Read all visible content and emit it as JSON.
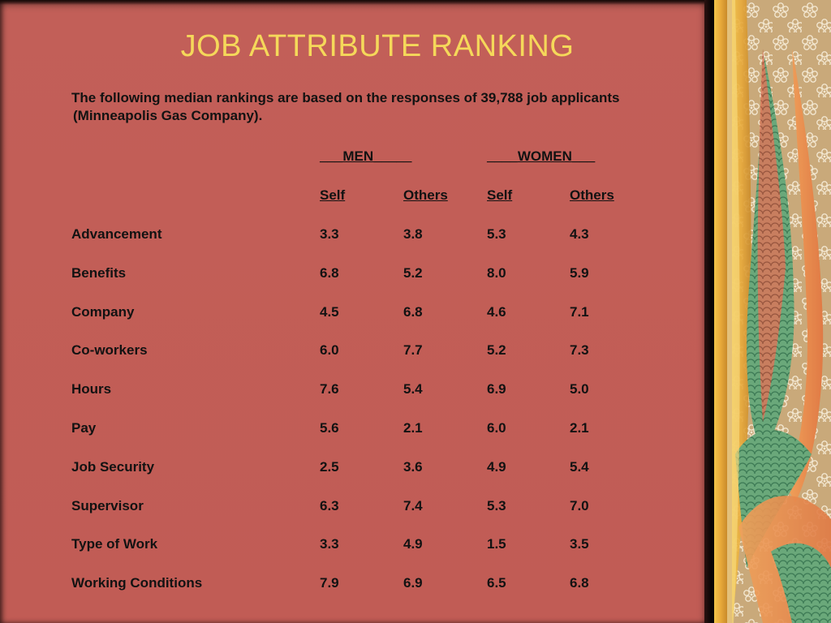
{
  "slide": {
    "title": "JOB ATTRIBUTE RANKING",
    "intro_line1": "The following median rankings are based on the responses of 39,788 job applicants",
    "intro_line2": "(Minneapolis Gas Company).",
    "group_headers": {
      "men": "MEN",
      "women": "WOMEN"
    },
    "column_headers": {
      "men_self": "Self",
      "men_others": "Others",
      "women_self": "Self",
      "women_others": "Others"
    },
    "rows": [
      {
        "label": "Advancement",
        "men_self": "3.3",
        "men_others": "3.8",
        "women_self": "5.3",
        "women_others": "4.3"
      },
      {
        "label": "Benefits",
        "men_self": "6.8",
        "men_others": "5.2",
        "women_self": "8.0",
        "women_others": "5.9"
      },
      {
        "label": "Company",
        "men_self": "4.5",
        "men_others": "6.8",
        "women_self": "4.6",
        "women_others": "7.1"
      },
      {
        "label": "Co-workers",
        "men_self": "6.0",
        "men_others": "7.7",
        "women_self": "5.2",
        "women_others": "7.3"
      },
      {
        "label": "Hours",
        "men_self": "7.6",
        "men_others": "5.4",
        "women_self": "6.9",
        "women_others": "5.0"
      },
      {
        "label": "Pay",
        "men_self": "5.6",
        "men_others": "2.1",
        "women_self": "6.0",
        "women_others": "2.1"
      },
      {
        "label": "Job Security",
        "men_self": "2.5",
        "men_others": "3.6",
        "women_self": "4.9",
        "women_others": "5.4"
      },
      {
        "label": "Supervisor",
        "men_self": "6.3",
        "men_others": "7.4",
        "women_self": "5.3",
        "women_others": "7.0"
      },
      {
        "label": "Type of Work",
        "men_self": "3.3",
        "men_others": "4.9",
        "women_self": "1.5",
        "women_others": "3.5"
      },
      {
        "label": "Working Conditions",
        "men_self": "7.9",
        "men_others": "6.9",
        "women_self": "6.5",
        "women_others": "6.8"
      }
    ]
  },
  "colors": {
    "panel": "#c25f58",
    "title": "#f5d85a",
    "text": "#121212"
  }
}
